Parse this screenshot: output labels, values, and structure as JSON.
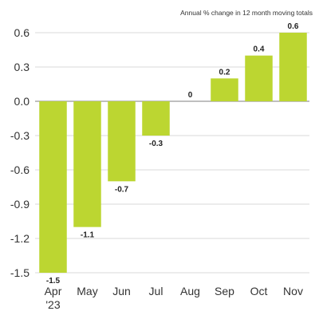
{
  "chart_data": {
    "type": "bar",
    "subtitle": "Annual % change in 12 month moving totals",
    "categories": [
      "Apr '23",
      "May",
      "Jun",
      "Jul",
      "Aug",
      "Sep",
      "Oct",
      "Nov"
    ],
    "category_lines": [
      [
        "Apr",
        "'23"
      ],
      [
        "May"
      ],
      [
        "Jun"
      ],
      [
        "Jul"
      ],
      [
        "Aug"
      ],
      [
        "Sep"
      ],
      [
        "Oct"
      ],
      [
        "Nov"
      ]
    ],
    "values": [
      -1.5,
      -1.1,
      -0.7,
      -0.3,
      0,
      0.2,
      0.4,
      0.6
    ],
    "data_labels": [
      "-1.5",
      "-1.1",
      "-0.7",
      "-0.3",
      "0",
      "0.2",
      "0.4",
      "0.6"
    ],
    "yticks": [
      0.6,
      0.3,
      0.0,
      -0.3,
      -0.6,
      -0.9,
      -1.2,
      -1.5
    ],
    "ytick_labels": [
      "0.6",
      "0.3",
      "0.0",
      "-0.3",
      "-0.6",
      "-0.9",
      "-1.2",
      "-1.5"
    ],
    "ylim": [
      -1.5,
      0.6
    ],
    "grid": true,
    "bar_color": "#bcd631"
  }
}
